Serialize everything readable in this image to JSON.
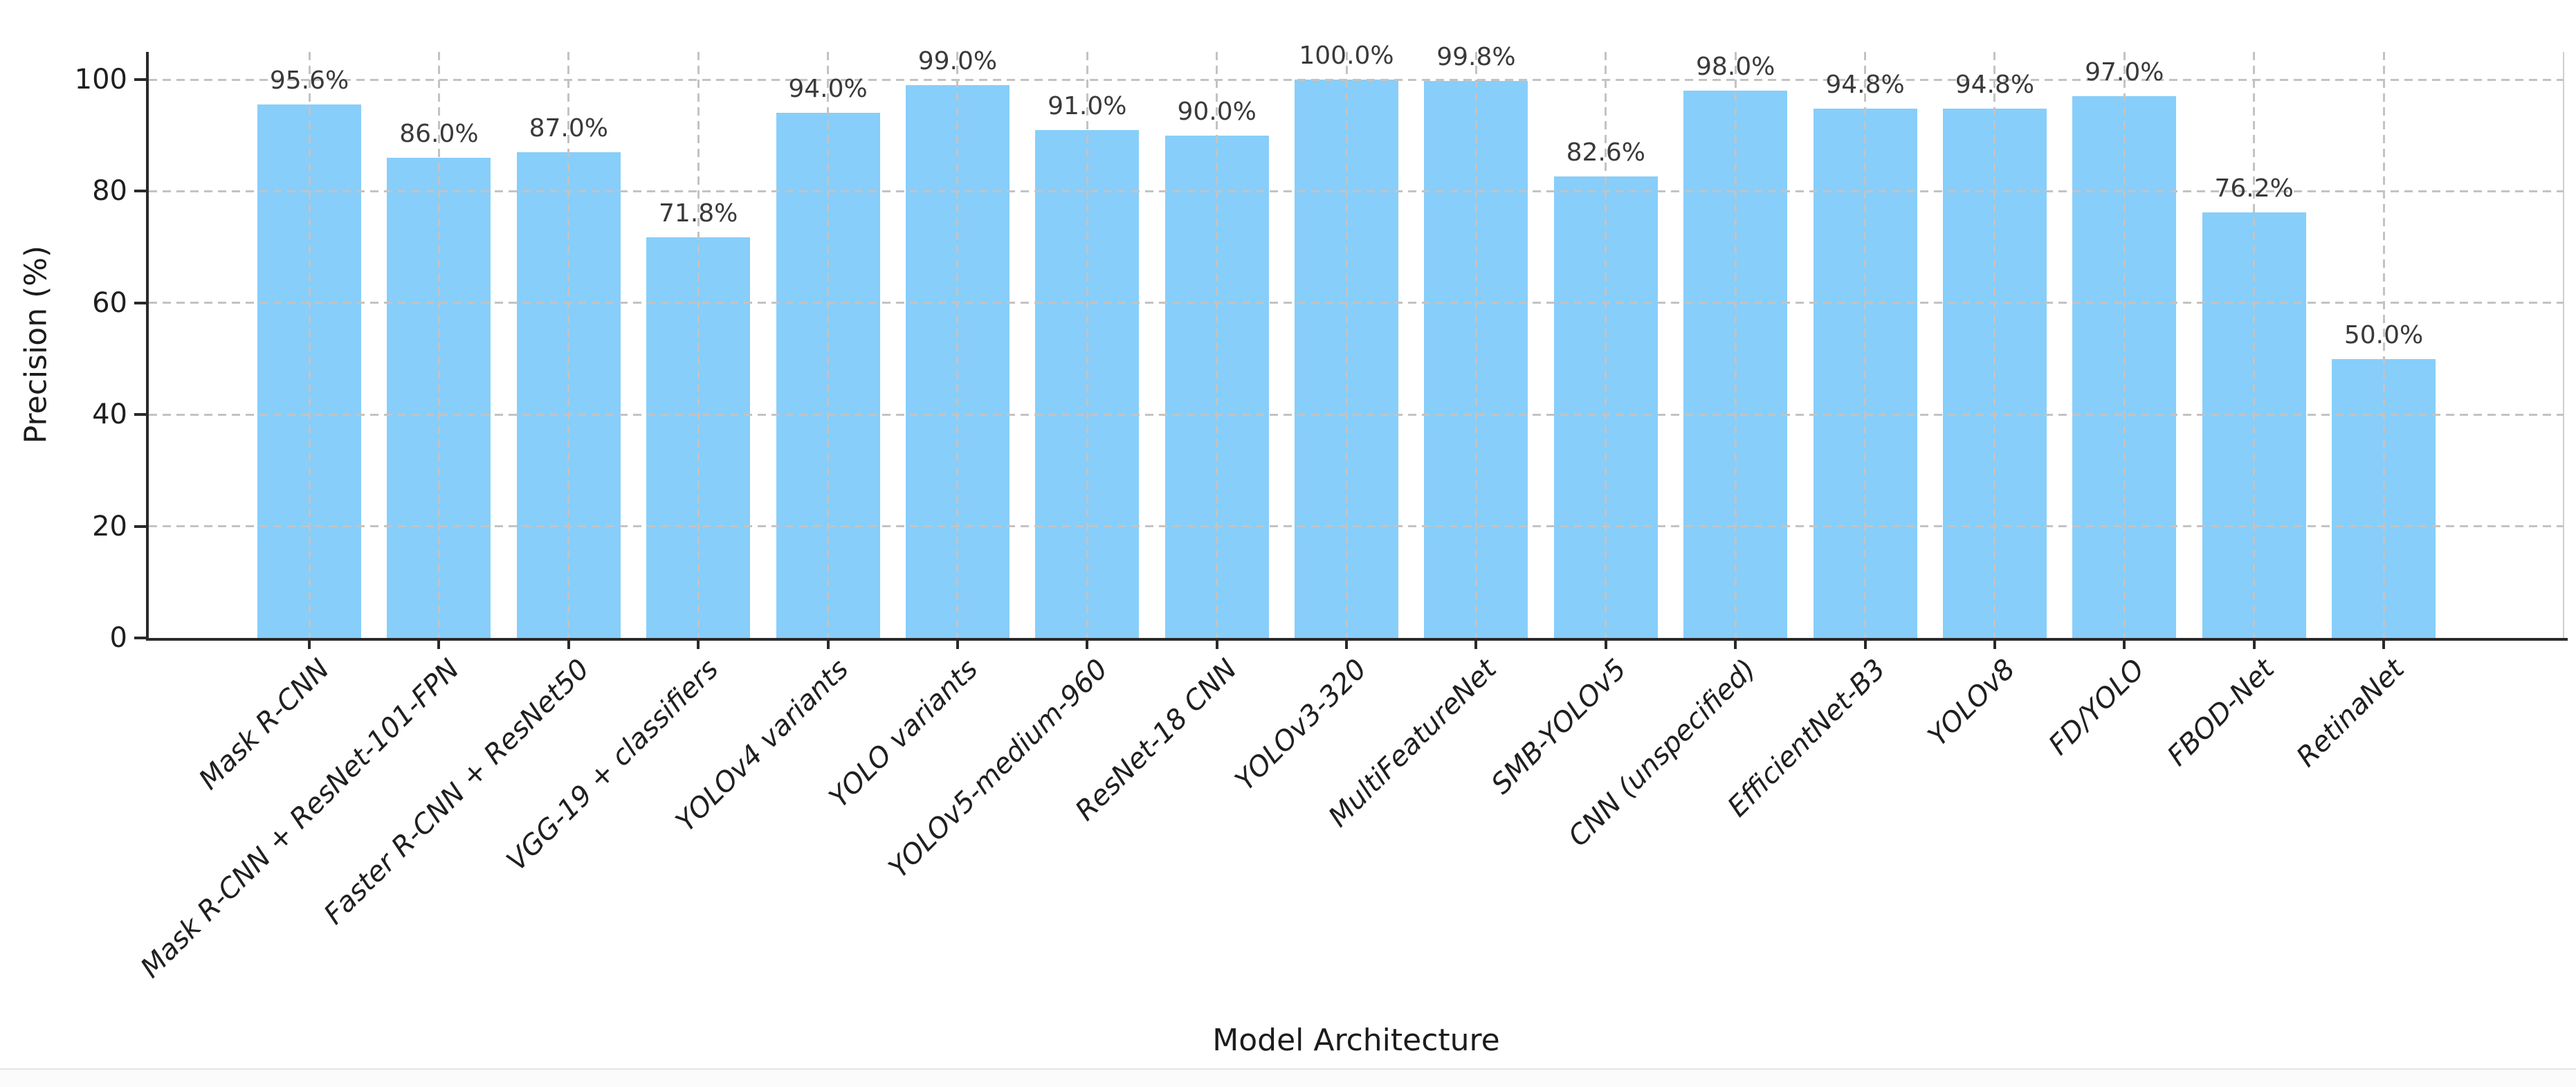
{
  "chart_data": {
    "type": "bar",
    "title": "",
    "xlabel": "Model Architecture",
    "ylabel": "Precision (%)",
    "categories": [
      "Mask R-CNN",
      "Mask R-CNN + ResNet-101-FPN",
      "Faster R-CNN + ResNet50",
      "VGG-19 + classifiers",
      "YOLOv4 variants",
      "YOLO variants",
      "YOLOv5-medium-960",
      "ResNet-18 CNN",
      "YOLOv3-320",
      "MultiFeatureNet",
      "SMB-YOLOv5",
      "CNN (unspecified)",
      "EfficientNet-B3",
      "YOLOv8",
      "FD/YOLO",
      "FBOD-Net",
      "RetinaNet"
    ],
    "values": [
      95.6,
      86.0,
      87.0,
      71.8,
      94.0,
      99.0,
      91.0,
      90.0,
      100.0,
      99.8,
      82.6,
      98.0,
      94.8,
      94.8,
      97.0,
      76.2,
      50.0
    ],
    "value_labels": [
      "95.6%",
      "86.0%",
      "87.0%",
      "71.8%",
      "94.0%",
      "99.0%",
      "91.0%",
      "90.0%",
      "100.0%",
      "99.8%",
      "82.6%",
      "98.0%",
      "94.8%",
      "94.8%",
      "97.0%",
      "76.2%",
      "50.0%"
    ],
    "ylim": [
      0,
      105
    ],
    "yticks": [
      0,
      20,
      40,
      60,
      80,
      100
    ],
    "ytick_labels": [
      "0",
      "20",
      "40",
      "60",
      "80",
      "100"
    ],
    "grid": "dashed horizontal at yticks and dashed vertical at each category center, drawn over bars",
    "legend": "none",
    "style": {
      "bar_color": "#87CEFA",
      "grid_color": "#c3c3c3",
      "spine_dark": "#2a2a2a",
      "spine_light": "#cfcfcf",
      "tick_label_color": "#1f1f1f",
      "value_label_color": "#3a3a3a"
    }
  }
}
